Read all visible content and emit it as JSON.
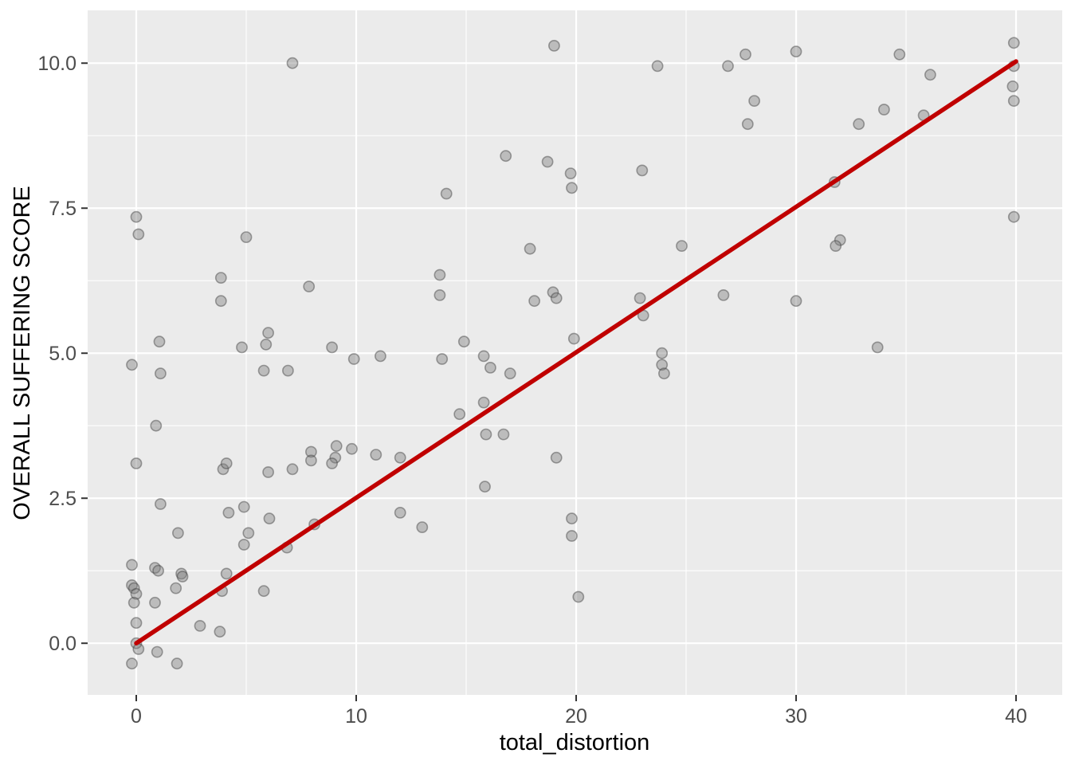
{
  "chart_data": {
    "type": "scatter",
    "title": "",
    "xlabel": "total_distortion",
    "ylabel": "OVERALL SUFFERING SCORE",
    "legend_position": "none",
    "grid": "on",
    "background": "ggplot2-grey-panel",
    "xlim": [
      -2.21,
      42.1
    ],
    "ylim": [
      -0.89,
      10.91
    ],
    "x_major_ticks": [
      0,
      10,
      20,
      30,
      40
    ],
    "x_tick_labels": [
      "0",
      "10",
      "20",
      "30",
      "40"
    ],
    "x_minor_ticks": [
      5,
      15,
      25,
      35
    ],
    "y_major_ticks": [
      0,
      2.5,
      5,
      7.5,
      10
    ],
    "y_tick_labels": [
      "0.0",
      "2.5",
      "5.0",
      "7.5",
      "10.0"
    ],
    "y_minor_ticks": [
      1.25,
      3.75,
      6.25,
      8.75
    ],
    "trend_line": {
      "x1": 0,
      "y1": 0,
      "x2": 40,
      "y2": 10.03
    },
    "points": [
      [
        7.1,
        10.0
      ],
      [
        0,
        7.35
      ],
      [
        0.1,
        7.05
      ],
      [
        5.0,
        7.0
      ],
      [
        3.85,
        6.3
      ],
      [
        7.85,
        6.15
      ],
      [
        3.85,
        5.9
      ],
      [
        1.05,
        5.2
      ],
      [
        4.8,
        5.1
      ],
      [
        6.0,
        5.35
      ],
      [
        5.9,
        5.15
      ],
      [
        8.9,
        5.1
      ],
      [
        9.9,
        4.9
      ],
      [
        19.0,
        10.3
      ],
      [
        23.7,
        9.95
      ],
      [
        16.8,
        8.4
      ],
      [
        18.7,
        8.3
      ],
      [
        19.75,
        8.1
      ],
      [
        19.8,
        7.85
      ],
      [
        23.0,
        8.15
      ],
      [
        14.1,
        7.75
      ],
      [
        17.9,
        6.8
      ],
      [
        24.8,
        6.85
      ],
      [
        13.8,
        6.35
      ],
      [
        13.8,
        6.0
      ],
      [
        18.95,
        6.05
      ],
      [
        19.1,
        5.95
      ],
      [
        18.1,
        5.9
      ],
      [
        22.9,
        5.95
      ],
      [
        23.05,
        5.65
      ],
      [
        19.9,
        5.25
      ],
      [
        14.9,
        5.2
      ],
      [
        11.1,
        4.95
      ],
      [
        13.9,
        4.9
      ],
      [
        15.8,
        4.95
      ],
      [
        16.1,
        4.75
      ],
      [
        17.0,
        4.65
      ],
      [
        15.8,
        4.15
      ],
      [
        14.7,
        3.95
      ],
      [
        15.9,
        3.6
      ],
      [
        16.7,
        3.6
      ],
      [
        10.9,
        3.25
      ],
      [
        12.0,
        3.2
      ],
      [
        19.1,
        3.2
      ],
      [
        15.85,
        2.7
      ],
      [
        12.0,
        2.25
      ],
      [
        13.0,
        2.0
      ],
      [
        19.8,
        2.15
      ],
      [
        19.8,
        1.85
      ],
      [
        20.1,
        0.8
      ],
      [
        23.9,
        5.0
      ],
      [
        23.9,
        4.8
      ],
      [
        24.0,
        4.65
      ],
      [
        26.9,
        9.95
      ],
      [
        27.7,
        10.15
      ],
      [
        30.0,
        10.2
      ],
      [
        34.7,
        10.15
      ],
      [
        39.9,
        10.35
      ],
      [
        39.9,
        9.95
      ],
      [
        39.85,
        9.6
      ],
      [
        39.9,
        9.35
      ],
      [
        36.1,
        9.8
      ],
      [
        28.1,
        9.35
      ],
      [
        27.8,
        8.95
      ],
      [
        34.0,
        9.2
      ],
      [
        32.85,
        8.95
      ],
      [
        35.8,
        9.1
      ],
      [
        31.75,
        7.95
      ],
      [
        39.9,
        7.35
      ],
      [
        32.0,
        6.95
      ],
      [
        31.8,
        6.85
      ],
      [
        26.7,
        6.0
      ],
      [
        30.0,
        5.9
      ],
      [
        33.7,
        5.1
      ],
      [
        -0.2,
        4.8
      ],
      [
        1.1,
        4.65
      ],
      [
        5.8,
        4.7
      ],
      [
        6.9,
        4.7
      ],
      [
        0.9,
        3.75
      ],
      [
        7.95,
        3.3
      ],
      [
        7.95,
        3.15
      ],
      [
        0,
        3.1
      ],
      [
        3.95,
        3.0
      ],
      [
        4.1,
        3.1
      ],
      [
        6.0,
        2.95
      ],
      [
        7.1,
        3.0
      ],
      [
        9.1,
        3.4
      ],
      [
        9.05,
        3.2
      ],
      [
        8.9,
        3.1
      ],
      [
        9.8,
        3.35
      ],
      [
        1.1,
        2.4
      ],
      [
        4.2,
        2.25
      ],
      [
        4.9,
        2.35
      ],
      [
        6.05,
        2.15
      ],
      [
        1.9,
        1.9
      ],
      [
        5.1,
        1.9
      ],
      [
        4.9,
        1.7
      ],
      [
        8.1,
        2.05
      ],
      [
        6.85,
        1.65
      ],
      [
        -0.2,
        1.35
      ],
      [
        0.85,
        1.3
      ],
      [
        1.0,
        1.25
      ],
      [
        2.05,
        1.2
      ],
      [
        2.1,
        1.15
      ],
      [
        4.1,
        1.2
      ],
      [
        -0.2,
        1.0
      ],
      [
        -0.1,
        0.95
      ],
      [
        0,
        0.85
      ],
      [
        -0.1,
        0.7
      ],
      [
        1.8,
        0.95
      ],
      [
        0.85,
        0.7
      ],
      [
        3.9,
        0.9
      ],
      [
        5.8,
        0.9
      ],
      [
        0,
        0.35
      ],
      [
        2.9,
        0.3
      ],
      [
        3.8,
        0.2
      ],
      [
        0,
        0.0
      ],
      [
        0.1,
        -0.1
      ],
      [
        0.95,
        -0.15
      ],
      [
        -0.2,
        -0.35
      ],
      [
        1.85,
        -0.35
      ]
    ],
    "colors": {
      "panel_background": "#EBEBEB",
      "grid_major": "#FFFFFF",
      "grid_minor": "#FFFFFF",
      "point_fill": "rgba(125,125,125,0.42)",
      "point_stroke": "rgba(60,60,60,0.45)",
      "trend_line": "#C00000",
      "tick_mark": "#333333",
      "tick_label": "#4D4D4D",
      "axis_title": "#000000"
    }
  }
}
